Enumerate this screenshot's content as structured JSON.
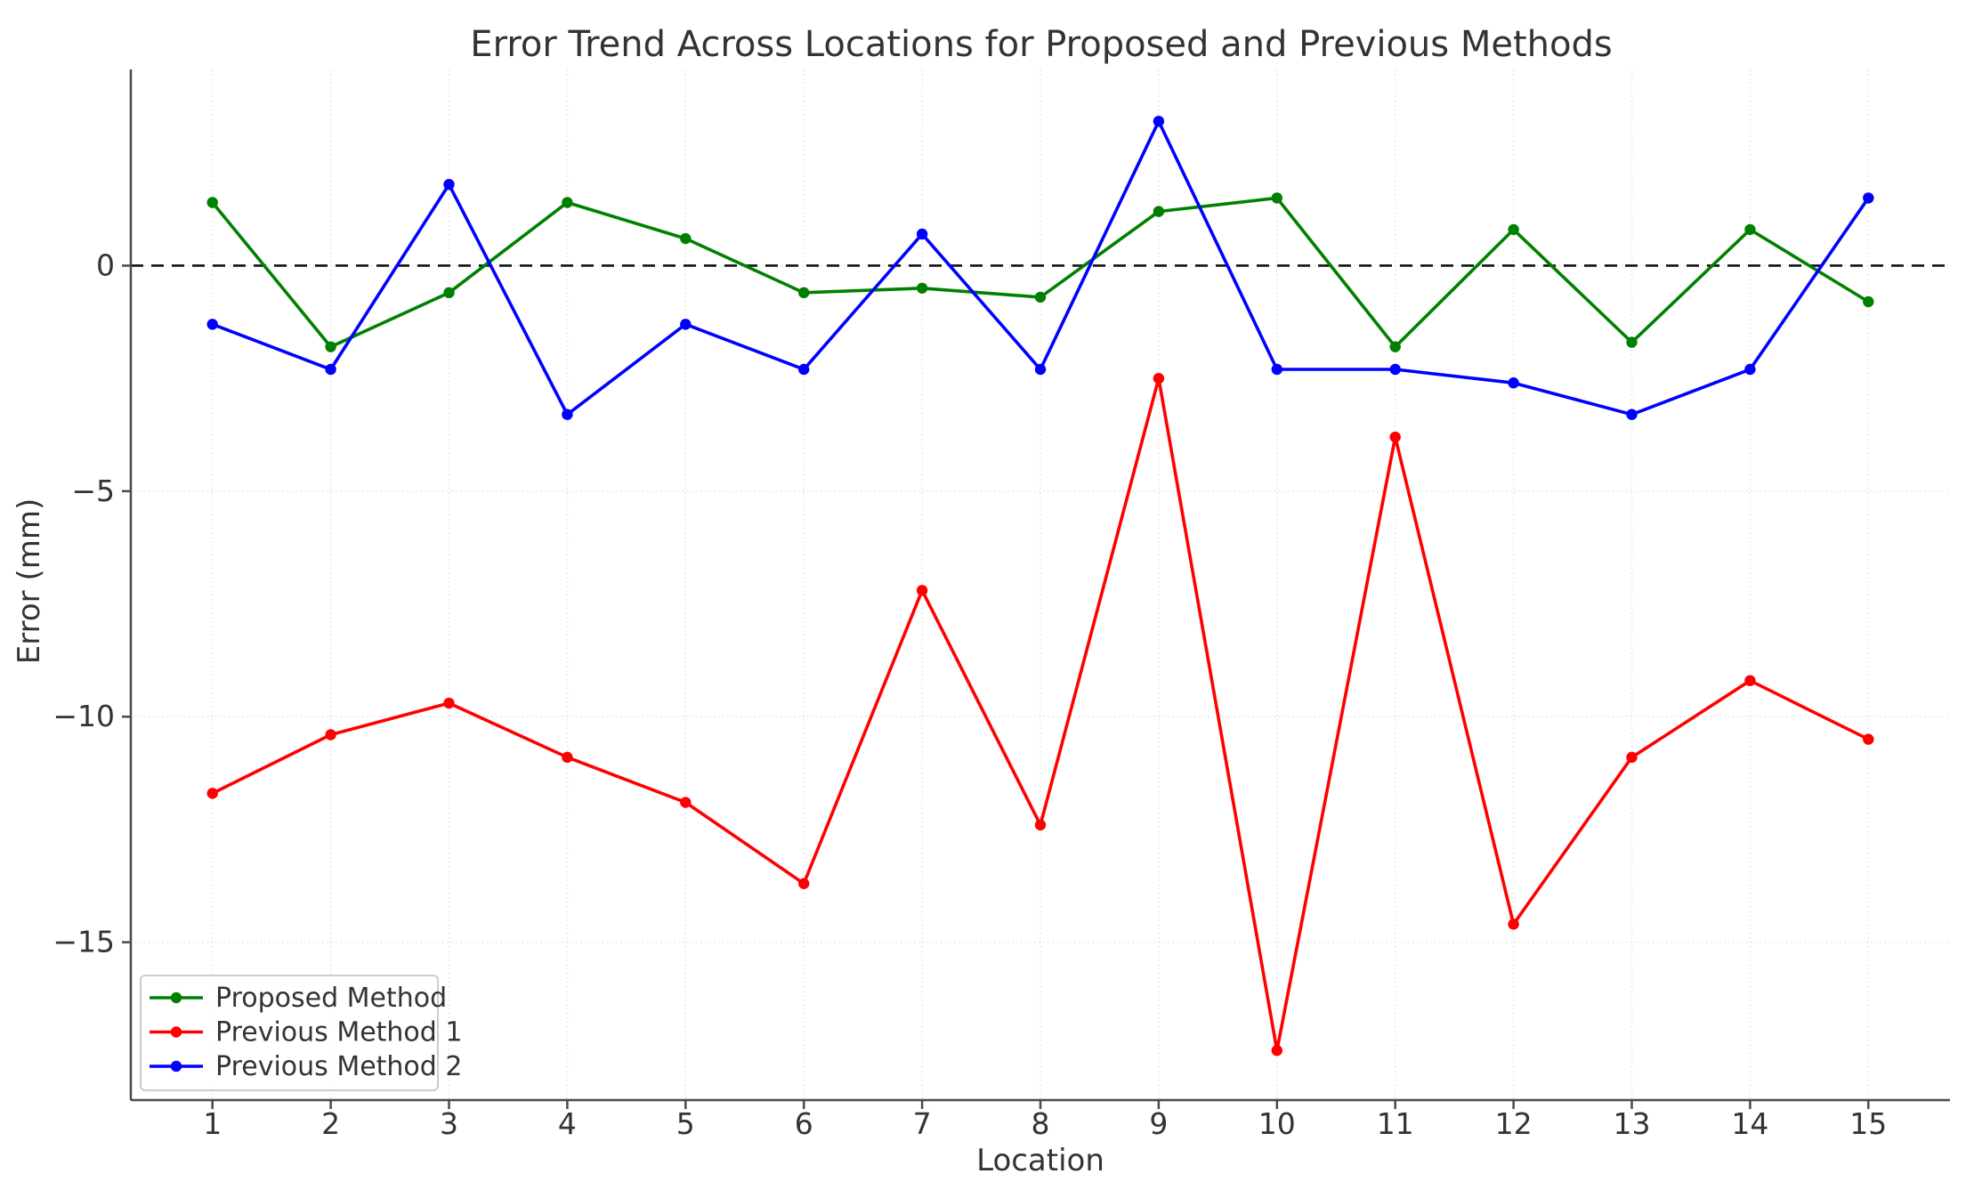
{
  "figure": {
    "title": "Error Trend Across Locations for Proposed and Previous Methods",
    "xlabel": "Location",
    "ylabel": "Error (mm)"
  },
  "chart_data": {
    "type": "line",
    "title": "Error Trend Across Locations for Proposed and Previous Methods",
    "xlabel": "Location",
    "ylabel": "Error (mm)",
    "x": [
      1,
      2,
      3,
      4,
      5,
      6,
      7,
      8,
      9,
      10,
      11,
      12,
      13,
      14,
      15
    ],
    "series": [
      {
        "name": "Proposed Method",
        "color": "#008000",
        "values": [
          1.4,
          -1.8,
          -0.6,
          1.4,
          0.6,
          -0.6,
          -0.5,
          -0.7,
          1.2,
          1.5,
          -1.8,
          0.8,
          -1.7,
          0.8,
          -0.8
        ]
      },
      {
        "name": "Previous Method 1",
        "color": "#ff0000",
        "values": [
          -11.7,
          -10.4,
          -9.7,
          -10.9,
          -11.9,
          -13.7,
          -7.2,
          -12.4,
          -2.5,
          -17.4,
          -3.8,
          -14.6,
          -10.9,
          -9.2,
          -10.5
        ]
      },
      {
        "name": "Previous Method 2",
        "color": "#0000ff",
        "values": [
          -1.3,
          -2.3,
          1.8,
          -3.3,
          -1.3,
          -2.3,
          0.7,
          -2.3,
          3.2,
          -2.3,
          -2.3,
          -2.6,
          -3.3,
          -2.3,
          1.5
        ]
      }
    ],
    "xlim": [
      0.31,
      15.69
    ],
    "ylim": [
      -18.5,
      4.35
    ],
    "xticks": [
      1,
      2,
      3,
      4,
      5,
      6,
      7,
      8,
      9,
      10,
      11,
      12,
      13,
      14,
      15
    ],
    "xtick_labels": [
      "1",
      "2",
      "3",
      "4",
      "5",
      "6",
      "7",
      "8",
      "9",
      "10",
      "11",
      "12",
      "13",
      "14",
      "15"
    ],
    "yticks": [
      0,
      -5,
      -10,
      -15
    ],
    "ytick_labels": [
      "0",
      "−5",
      "−10",
      "−15"
    ],
    "grid": true,
    "grid_color": "#e2e2e2",
    "zero_line": {
      "y": 0,
      "style": "dashed",
      "color": "#111111"
    },
    "legend_position": "lower left",
    "text_color": "#333333",
    "spine_color": "#4a4a4a",
    "background": "#ffffff"
  }
}
